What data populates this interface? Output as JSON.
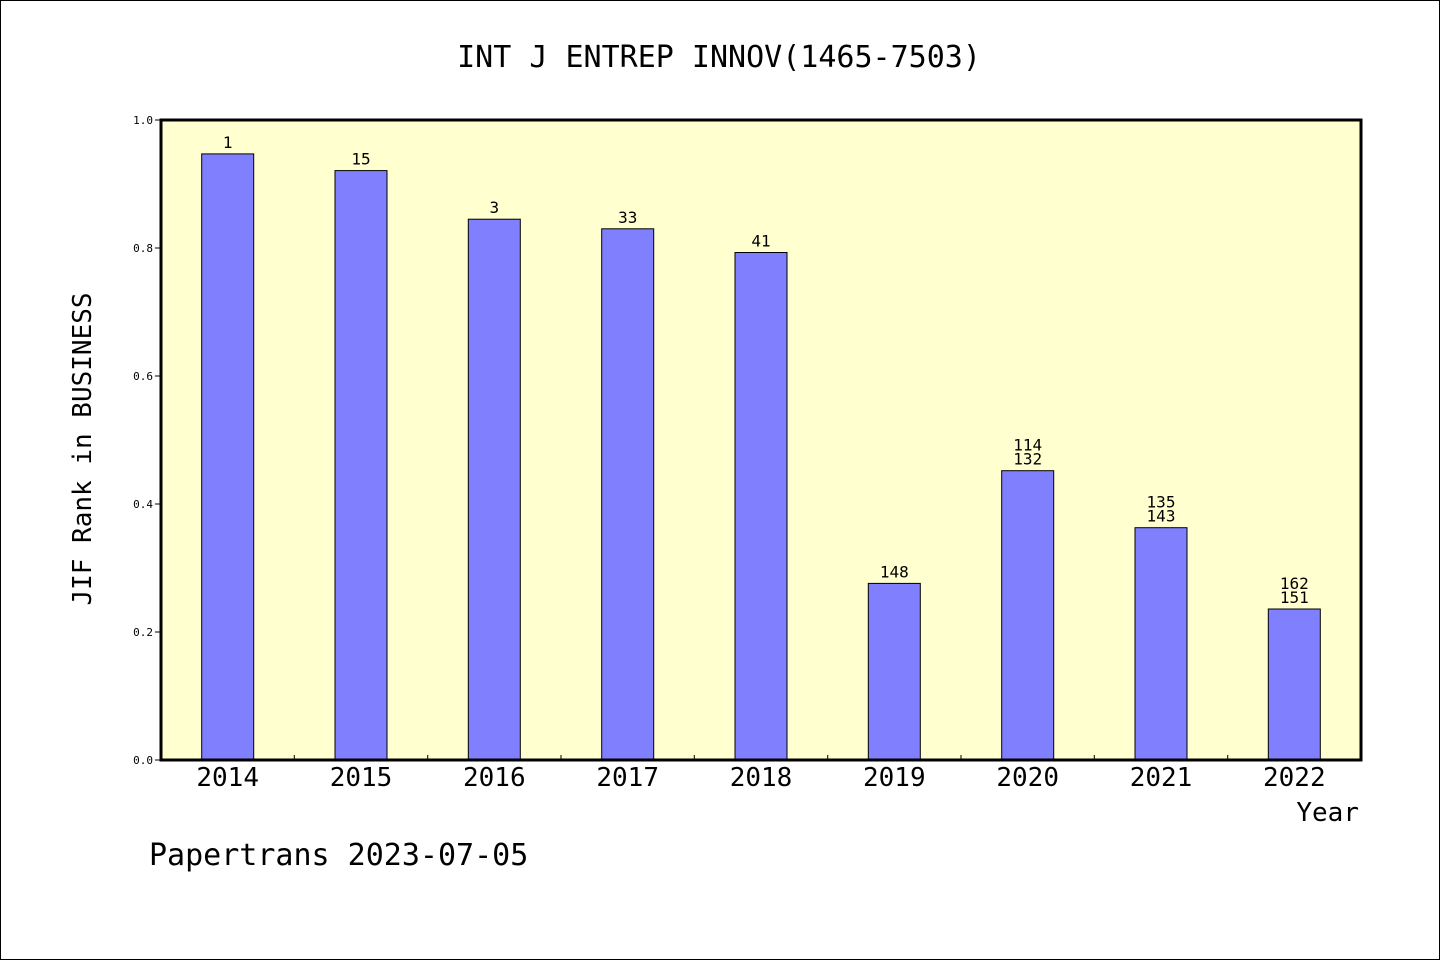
{
  "chart_data": {
    "type": "bar",
    "title": "INT J ENTREP INNOV(1465-7503)",
    "xlabel": "Year",
    "ylabel": "JIF Rank in BUSINESS",
    "ylim": [
      0,
      1.0
    ],
    "yticks": [
      "0.0",
      "0.2",
      "0.4",
      "0.6",
      "0.8",
      "1.0"
    ],
    "categories": [
      "2014",
      "2015",
      "2016",
      "2017",
      "2018",
      "2019",
      "2020",
      "2021",
      "2022"
    ],
    "values": [
      0.947,
      0.921,
      0.845,
      0.83,
      0.793,
      0.276,
      0.452,
      0.363,
      0.236
    ],
    "labels": [
      [
        "1"
      ],
      [
        "15"
      ],
      [
        "3"
      ],
      [
        "33"
      ],
      [
        "41"
      ],
      [
        "148"
      ],
      [
        "114",
        "132"
      ],
      [
        "135",
        "143"
      ],
      [
        "162",
        "151"
      ]
    ],
    "grid": false,
    "colors": {
      "plot_background": "#ffffd0",
      "bar_fill": "#8080ff",
      "bar_stroke": "#000000"
    }
  },
  "footer": {
    "text": "Papertrans 2023-07-05"
  }
}
